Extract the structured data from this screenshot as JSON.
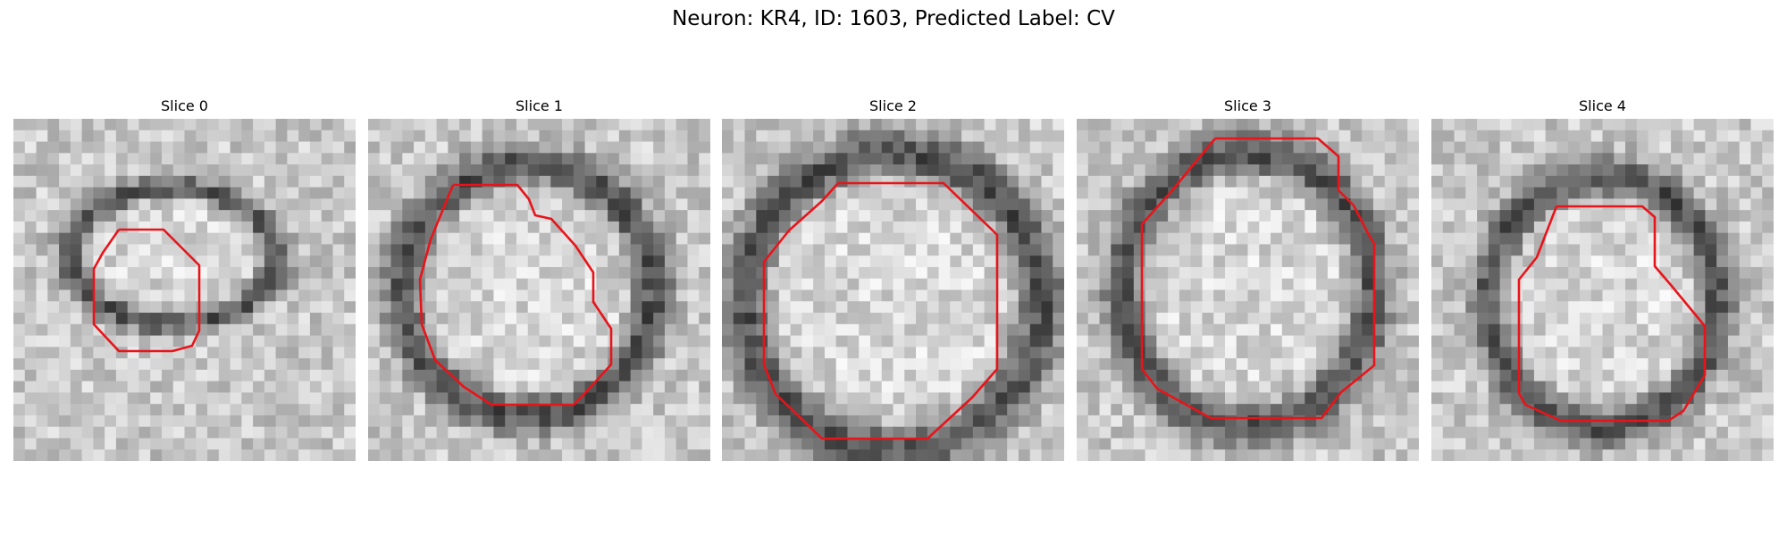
{
  "title": "Neuron: KR4, ID: 1603, Predicted Label: CV",
  "panels": [
    {
      "label": "Slice 0"
    },
    {
      "label": "Slice 1"
    },
    {
      "label": "Slice 2"
    },
    {
      "label": "Slice 3"
    },
    {
      "label": "Slice 4"
    }
  ],
  "colors": {
    "contour": "#e8141a",
    "background": "#ffffff"
  },
  "icons": {
    "image": "grayscale-microscopy-crop",
    "overlay": "red-contour-outline"
  }
}
